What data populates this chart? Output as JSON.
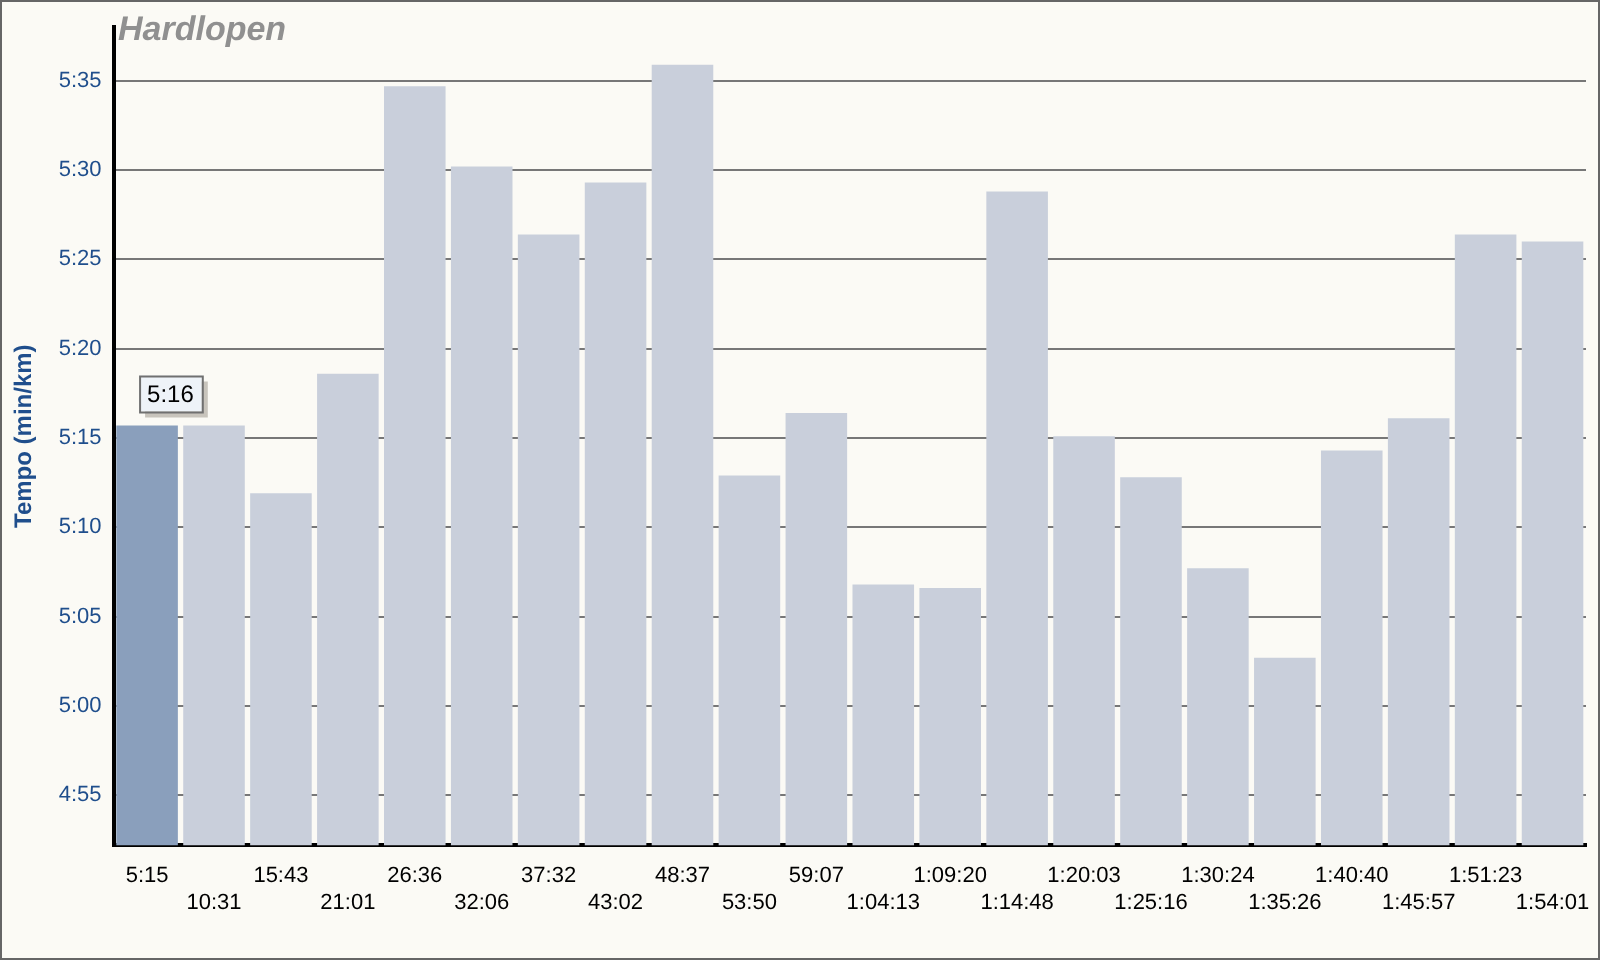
{
  "chart_data": {
    "type": "bar",
    "title": "Hardlopen",
    "ylabel": "Tempo (min/km)",
    "categories": [
      "5:15",
      "10:31",
      "15:43",
      "21:01",
      "26:36",
      "32:06",
      "37:32",
      "43:02",
      "48:37",
      "53:50",
      "59:07",
      "1:04:13",
      "1:09:20",
      "1:14:48",
      "1:20:03",
      "1:25:16",
      "1:30:24",
      "1:35:26",
      "1:40:40",
      "1:45:57",
      "1:51:23",
      "1:54:01"
    ],
    "values": [
      315.7,
      315.7,
      311.9,
      318.6,
      334.7,
      330.2,
      326.4,
      329.3,
      335.9,
      312.9,
      316.4,
      306.8,
      306.6,
      328.8,
      315.1,
      312.8,
      307.7,
      302.7,
      314.3,
      316.1,
      326.4,
      326.0
    ],
    "colors": [
      "#8a9fbc",
      "#c9cfdb",
      "#c9cfdb",
      "#c9cfdb",
      "#c9cfdb",
      "#c9cfdb",
      "#c9cfdb",
      "#c9cfdb",
      "#c9cfdb",
      "#c9cfdb",
      "#c9cfdb",
      "#c9cfdb",
      "#c9cfdb",
      "#c9cfdb",
      "#c9cfdb",
      "#c9cfdb",
      "#c9cfdb",
      "#c9cfdb",
      "#c9cfdb",
      "#c9cfdb",
      "#c9cfdb",
      "#c9cfdb"
    ],
    "ylim": [
      292.2,
      338
    ],
    "yticks": [
      {
        "value": 295,
        "label": "4:55"
      },
      {
        "value": 300,
        "label": "5:00"
      },
      {
        "value": 305,
        "label": "5:05"
      },
      {
        "value": 310,
        "label": "5:10"
      },
      {
        "value": 315,
        "label": "5:15"
      },
      {
        "value": 320,
        "label": "5:20"
      },
      {
        "value": 325,
        "label": "5:25"
      },
      {
        "value": 330,
        "label": "5:30"
      },
      {
        "value": 335,
        "label": "5:35"
      }
    ],
    "grid": "y",
    "legend": false,
    "annotations": [
      {
        "text": "5:16",
        "x": "5:15",
        "y": 315.7
      }
    ]
  }
}
